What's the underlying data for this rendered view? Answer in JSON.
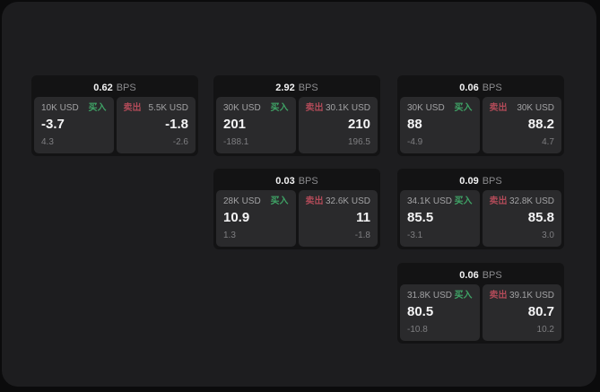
{
  "labels": {
    "bps_unit": "BPS",
    "buy": "买入",
    "sell": "卖出"
  },
  "colors": {
    "buy": "#3fa366",
    "sell": "#b04a58",
    "panel": "#1d1d1f",
    "card": "#131314",
    "tile": "#2a2a2c"
  },
  "cards": [
    {
      "bps": "0.62",
      "buy": {
        "amount": "10K USD",
        "price": "-3.7",
        "sub": "4.3"
      },
      "sell": {
        "amount": "5.5K USD",
        "price": "-1.8",
        "sub": "-2.6"
      }
    },
    {
      "bps": "2.92",
      "buy": {
        "amount": "30K USD",
        "price": "201",
        "sub": "-188.1"
      },
      "sell": {
        "amount": "30.1K USD",
        "price": "210",
        "sub": "196.5"
      }
    },
    {
      "bps": "0.06",
      "buy": {
        "amount": "30K USD",
        "price": "88",
        "sub": "-4.9"
      },
      "sell": {
        "amount": "30K USD",
        "price": "88.2",
        "sub": "4.7"
      }
    },
    {
      "bps": "0.03",
      "buy": {
        "amount": "28K USD",
        "price": "10.9",
        "sub": "1.3"
      },
      "sell": {
        "amount": "32.6K USD",
        "price": "11",
        "sub": "-1.8"
      }
    },
    {
      "bps": "0.09",
      "buy": {
        "amount": "34.1K USD",
        "price": "85.5",
        "sub": "-3.1"
      },
      "sell": {
        "amount": "32.8K USD",
        "price": "85.8",
        "sub": "3.0"
      }
    },
    {
      "bps": "0.06",
      "buy": {
        "amount": "31.8K USD",
        "price": "80.5",
        "sub": "-10.8"
      },
      "sell": {
        "amount": "39.1K USD",
        "price": "80.7",
        "sub": "10.2"
      }
    }
  ]
}
